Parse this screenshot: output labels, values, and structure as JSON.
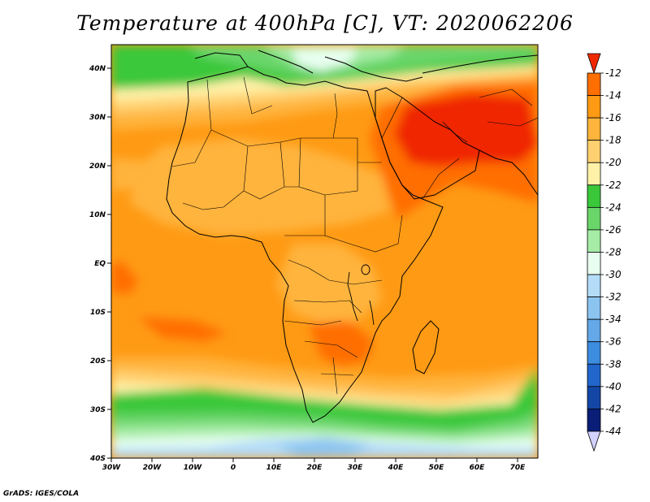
{
  "title": "Temperature at 400hPa [C], VT: 2020062206",
  "footer": "GrADS: IGES/COLA",
  "map": {
    "lon_range": [
      -30,
      75
    ],
    "lat_range": [
      -40,
      45
    ],
    "lon_ticks": [
      "30W",
      "20W",
      "10W",
      "0",
      "10E",
      "20E",
      "30E",
      "40E",
      "50E",
      "60E",
      "70E"
    ],
    "lat_ticks": [
      "40S",
      "30S",
      "20S",
      "10S",
      "EQ",
      "10N",
      "20N",
      "30N",
      "40N"
    ]
  },
  "colorbar": {
    "levels": [
      "-12",
      "-14",
      "-16",
      "-18",
      "-20",
      "-22",
      "-24",
      "-26",
      "-28",
      "-30",
      "-32",
      "-34",
      "-36",
      "-38",
      "-40",
      "-42",
      "-44"
    ],
    "colors": [
      "#f02800",
      "#ff6e00",
      "#ff9a14",
      "#ffb43c",
      "#ffd070",
      "#fff2a8",
      "#3ac83a",
      "#6ad66a",
      "#a6eca6",
      "#e8fff0",
      "#b4dcf8",
      "#8cc4f0",
      "#64a8e8",
      "#3c8ce0",
      "#2266cc",
      "#1446a6",
      "#0a1e78",
      "#d2d2ff"
    ]
  }
}
